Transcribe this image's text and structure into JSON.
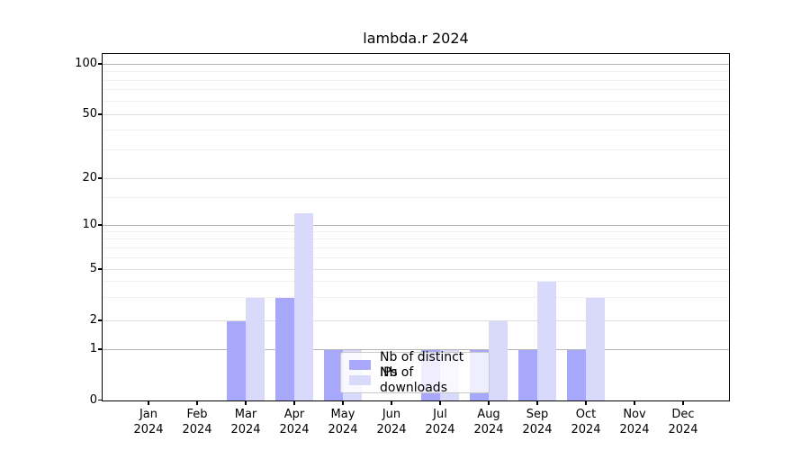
{
  "title": "lambda.r 2024",
  "legend": {
    "items": [
      {
        "label": "Nb of distinct IPs",
        "color": "#a8a8fa"
      },
      {
        "label": "Nb of downloads",
        "color": "#d9d9fb"
      }
    ]
  },
  "y_axis": {
    "ticks": [
      0,
      1,
      2,
      5,
      10,
      20,
      50,
      100
    ],
    "tick_labels": [
      "0",
      "1",
      "2",
      "5",
      "10",
      "20",
      "50",
      "100"
    ],
    "minor_ticks": [
      3,
      4,
      6,
      7,
      8,
      9,
      15,
      30,
      40,
      60,
      70,
      80,
      90
    ]
  },
  "x_axis": {
    "months": [
      "Jan",
      "Feb",
      "Mar",
      "Apr",
      "May",
      "Jun",
      "Jul",
      "Aug",
      "Sep",
      "Oct",
      "Nov",
      "Dec"
    ],
    "year": "2024"
  },
  "chart_data": {
    "type": "bar",
    "title": "lambda.r 2024",
    "categories": [
      "Jan 2024",
      "Feb 2024",
      "Mar 2024",
      "Apr 2024",
      "May 2024",
      "Jun 2024",
      "Jul 2024",
      "Aug 2024",
      "Sep 2024",
      "Oct 2024",
      "Nov 2024",
      "Dec 2024"
    ],
    "series": [
      {
        "name": "Nb of distinct IPs",
        "color": "#a8a8fa",
        "values": [
          0,
          0,
          2,
          3,
          1,
          0,
          1,
          1,
          1,
          1,
          0,
          0
        ]
      },
      {
        "name": "Nb of downloads",
        "color": "#d9d9fb",
        "values": [
          0,
          0,
          3,
          12,
          1,
          0,
          1,
          2,
          4,
          3,
          0,
          0
        ]
      }
    ],
    "xlabel": "",
    "ylabel": "",
    "ylim": [
      0,
      100
    ],
    "y_scale": "log-like with 0 baseline",
    "grid": true,
    "legend_position": "inside bottom-center"
  }
}
